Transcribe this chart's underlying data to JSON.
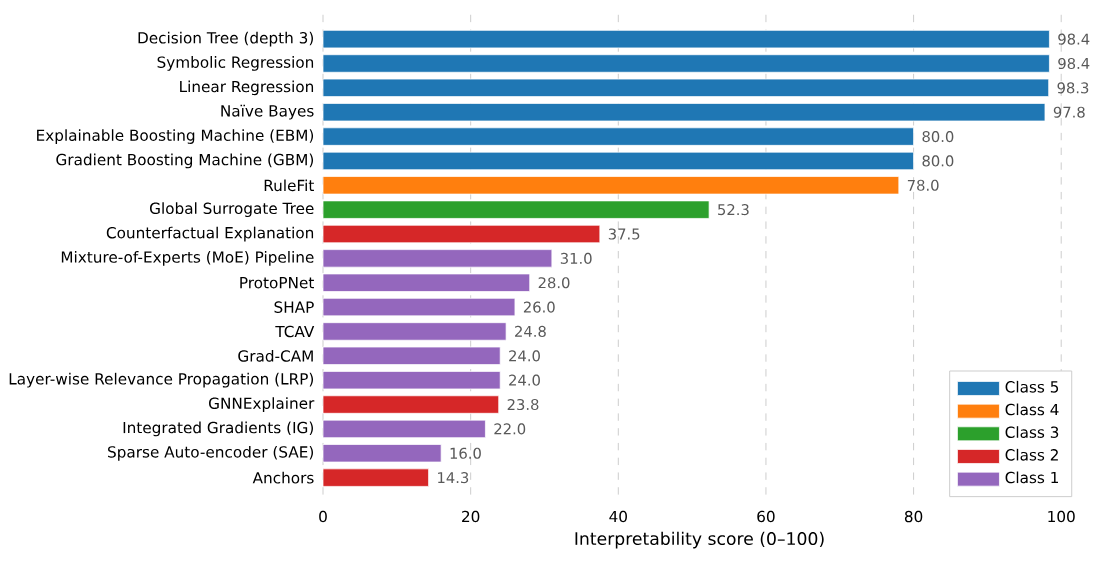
{
  "chart_data": {
    "type": "bar",
    "orientation": "horizontal",
    "xlabel": "Interpretability score (0–100)",
    "categories": [
      "Decision Tree (depth 3)",
      "Symbolic Regression",
      "Linear Regression",
      "Naïve Bayes",
      "Explainable Boosting Machine (EBM)",
      "Gradient Boosting Machine (GBM)",
      "RuleFit",
      "Global Surrogate Tree",
      "Counterfactual Explanation",
      "Mixture-of-Experts (MoE) Pipeline",
      "ProtoPNet",
      "SHAP",
      "TCAV",
      "Grad-CAM",
      "Layer-wise Relevance Propagation (LRP)",
      "GNNExplainer",
      "Integrated Gradients (IG)",
      "Sparse Auto-encoder (SAE)",
      "Anchors"
    ],
    "series": [
      {
        "name": "Class 5",
        "color": "#1f77b4",
        "values": [
          98.4,
          98.4,
          98.3,
          97.8,
          80.0,
          80.0,
          null,
          null,
          null,
          null,
          null,
          null,
          null,
          null,
          null,
          null,
          null,
          null,
          null
        ],
        "value_labels": [
          "98.4",
          "98.4",
          "98.3",
          "97.8",
          "80.0",
          "80.0",
          null,
          null,
          null,
          null,
          null,
          null,
          null,
          null,
          null,
          null,
          null,
          null,
          null
        ]
      },
      {
        "name": "Class 4",
        "color": "#ff7f0e",
        "values": [
          null,
          null,
          null,
          null,
          null,
          null,
          78.0,
          null,
          null,
          null,
          null,
          null,
          null,
          null,
          null,
          null,
          null,
          null,
          null
        ],
        "value_labels": [
          null,
          null,
          null,
          null,
          null,
          null,
          "78.0",
          null,
          null,
          null,
          null,
          null,
          null,
          null,
          null,
          null,
          null,
          null,
          null
        ]
      },
      {
        "name": "Class 3",
        "color": "#2ca02c",
        "values": [
          null,
          null,
          null,
          null,
          null,
          null,
          null,
          52.3,
          null,
          null,
          null,
          null,
          null,
          null,
          null,
          null,
          null,
          null,
          null
        ],
        "value_labels": [
          null,
          null,
          null,
          null,
          null,
          null,
          null,
          "52.3",
          null,
          null,
          null,
          null,
          null,
          null,
          null,
          null,
          null,
          null,
          null
        ]
      },
      {
        "name": "Class 2",
        "color": "#d62728",
        "values": [
          null,
          null,
          null,
          null,
          null,
          null,
          null,
          null,
          37.5,
          null,
          null,
          null,
          null,
          null,
          null,
          23.8,
          null,
          null,
          14.3
        ],
        "value_labels": [
          null,
          null,
          null,
          null,
          null,
          null,
          null,
          null,
          "37.5",
          null,
          null,
          null,
          null,
          null,
          null,
          "23.8",
          null,
          null,
          "14.3"
        ]
      },
      {
        "name": "Class 1",
        "color": "#9467bd",
        "values": [
          null,
          null,
          null,
          null,
          null,
          null,
          null,
          null,
          null,
          31.0,
          28.0,
          26.0,
          24.8,
          24.0,
          24.0,
          null,
          22.0,
          16.0,
          null
        ],
        "value_labels": [
          null,
          null,
          null,
          null,
          null,
          null,
          null,
          null,
          null,
          "31.0",
          "28.0",
          "26.0",
          "24.8",
          "24.0",
          "24.0",
          null,
          "22.0",
          "16.0",
          null
        ]
      }
    ],
    "xlim": [
      0,
      102
    ],
    "xticks": [
      0,
      20,
      40,
      60,
      80,
      100
    ],
    "grid": "x",
    "legend": "bottom right"
  }
}
